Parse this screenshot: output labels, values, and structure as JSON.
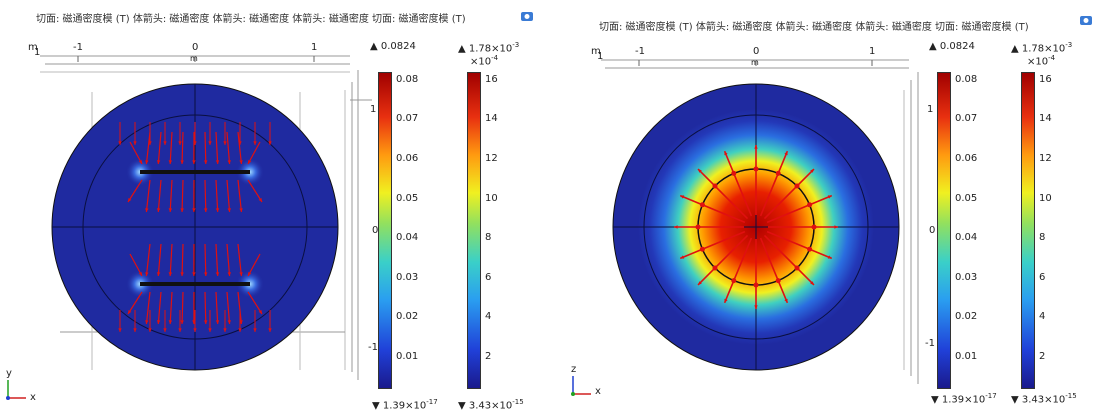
{
  "panels": [
    {
      "title": "切面: 磁通密度模 (T)  体箭头: 磁通密度  体箭头: 磁通密度  体箭头: 磁通密度  切面: 磁通密度模 (T)",
      "axes": {
        "x_name": "x",
        "y_name": "y",
        "unit": "m",
        "ticks": [
          "-1",
          "0",
          "1"
        ]
      },
      "colorbars": [
        {
          "max": "0.0824",
          "min_base": "1.39×10",
          "min_exp": "-17",
          "ticks": [
            "0.08",
            "0.07",
            "0.06",
            "0.05",
            "0.04",
            "0.03",
            "0.02",
            "0.01"
          ]
        },
        {
          "max_base": "1.78×10",
          "max_exp": "-3",
          "scale_base": "×10",
          "scale_exp": "-4",
          "min_base": "3.43×10",
          "min_exp": "-15",
          "ticks": [
            "16",
            "14",
            "12",
            "10",
            "8",
            "6",
            "4",
            "2"
          ]
        }
      ]
    },
    {
      "title": "切面: 磁通密度模 (T)  体箭头: 磁通密度  体箭头: 磁通密度  体箭头: 磁通密度  切面: 磁通密度模 (T)",
      "axes": {
        "x_name": "x",
        "y_name": "z",
        "unit": "m",
        "ticks": [
          "-1",
          "0",
          "1"
        ]
      },
      "colorbars": [
        {
          "max": "0.0824",
          "min_base": "1.39×10",
          "min_exp": "-17",
          "ticks": [
            "0.08",
            "0.07",
            "0.06",
            "0.05",
            "0.04",
            "0.03",
            "0.02",
            "0.01"
          ]
        },
        {
          "max_base": "1.78×10",
          "max_exp": "-3",
          "scale_base": "×10",
          "scale_exp": "-4",
          "min_base": "3.43×10",
          "min_exp": "-15",
          "ticks": [
            "16",
            "14",
            "12",
            "10",
            "8",
            "6",
            "4",
            "2"
          ]
        }
      ]
    }
  ],
  "chart_data": [
    {
      "type": "heatmap",
      "colorbar_range": [
        0,
        0.0824
      ],
      "arrow_range": [
        0,
        0.00178
      ],
      "pattern": "two-conductor slice with dipole arrows"
    },
    {
      "type": "heatmap",
      "colorbar_range": [
        0,
        0.0824
      ],
      "arrow_range": [
        0,
        0.00178
      ],
      "pattern": "radial field, high center"
    }
  ],
  "colors": {
    "plot_bg": "#1f2aa0",
    "arrow": "#e01010"
  }
}
